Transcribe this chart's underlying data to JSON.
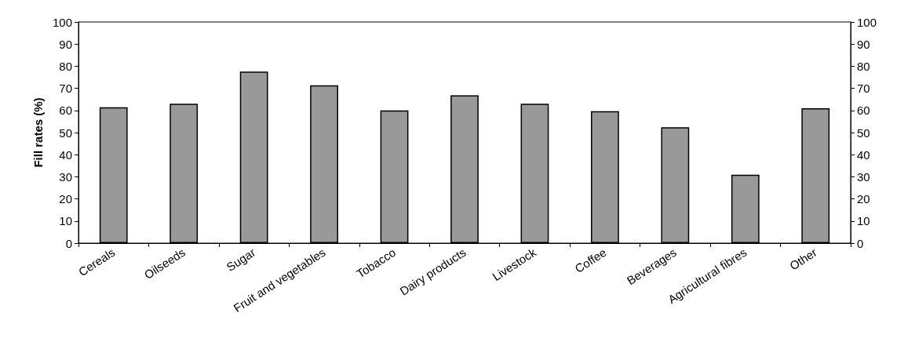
{
  "chart_data": {
    "type": "bar",
    "ylabel": "Fill rates (%)",
    "categories": [
      "Cereals",
      "Oilseeds",
      "Sugar",
      "Fruit and vegetables",
      "Tobacco",
      "Dairy products",
      "Livestock",
      "Coffee",
      "Beverages",
      "Agricultural fibres",
      "Other"
    ],
    "values": [
      61.4,
      63.0,
      77.6,
      71.4,
      60.0,
      66.8,
      63.0,
      59.7,
      52.4,
      30.9,
      61.0
    ],
    "color": "#999999",
    "ylim": [
      0,
      100
    ],
    "yticks": [
      0,
      10,
      20,
      30,
      40,
      50,
      60,
      70,
      80,
      90,
      100
    ],
    "y2lim": [
      0,
      100
    ],
    "y2ticks": [
      0,
      10,
      20,
      30,
      40,
      50,
      60,
      70,
      80,
      90,
      100
    ],
    "data_labels": false
  }
}
